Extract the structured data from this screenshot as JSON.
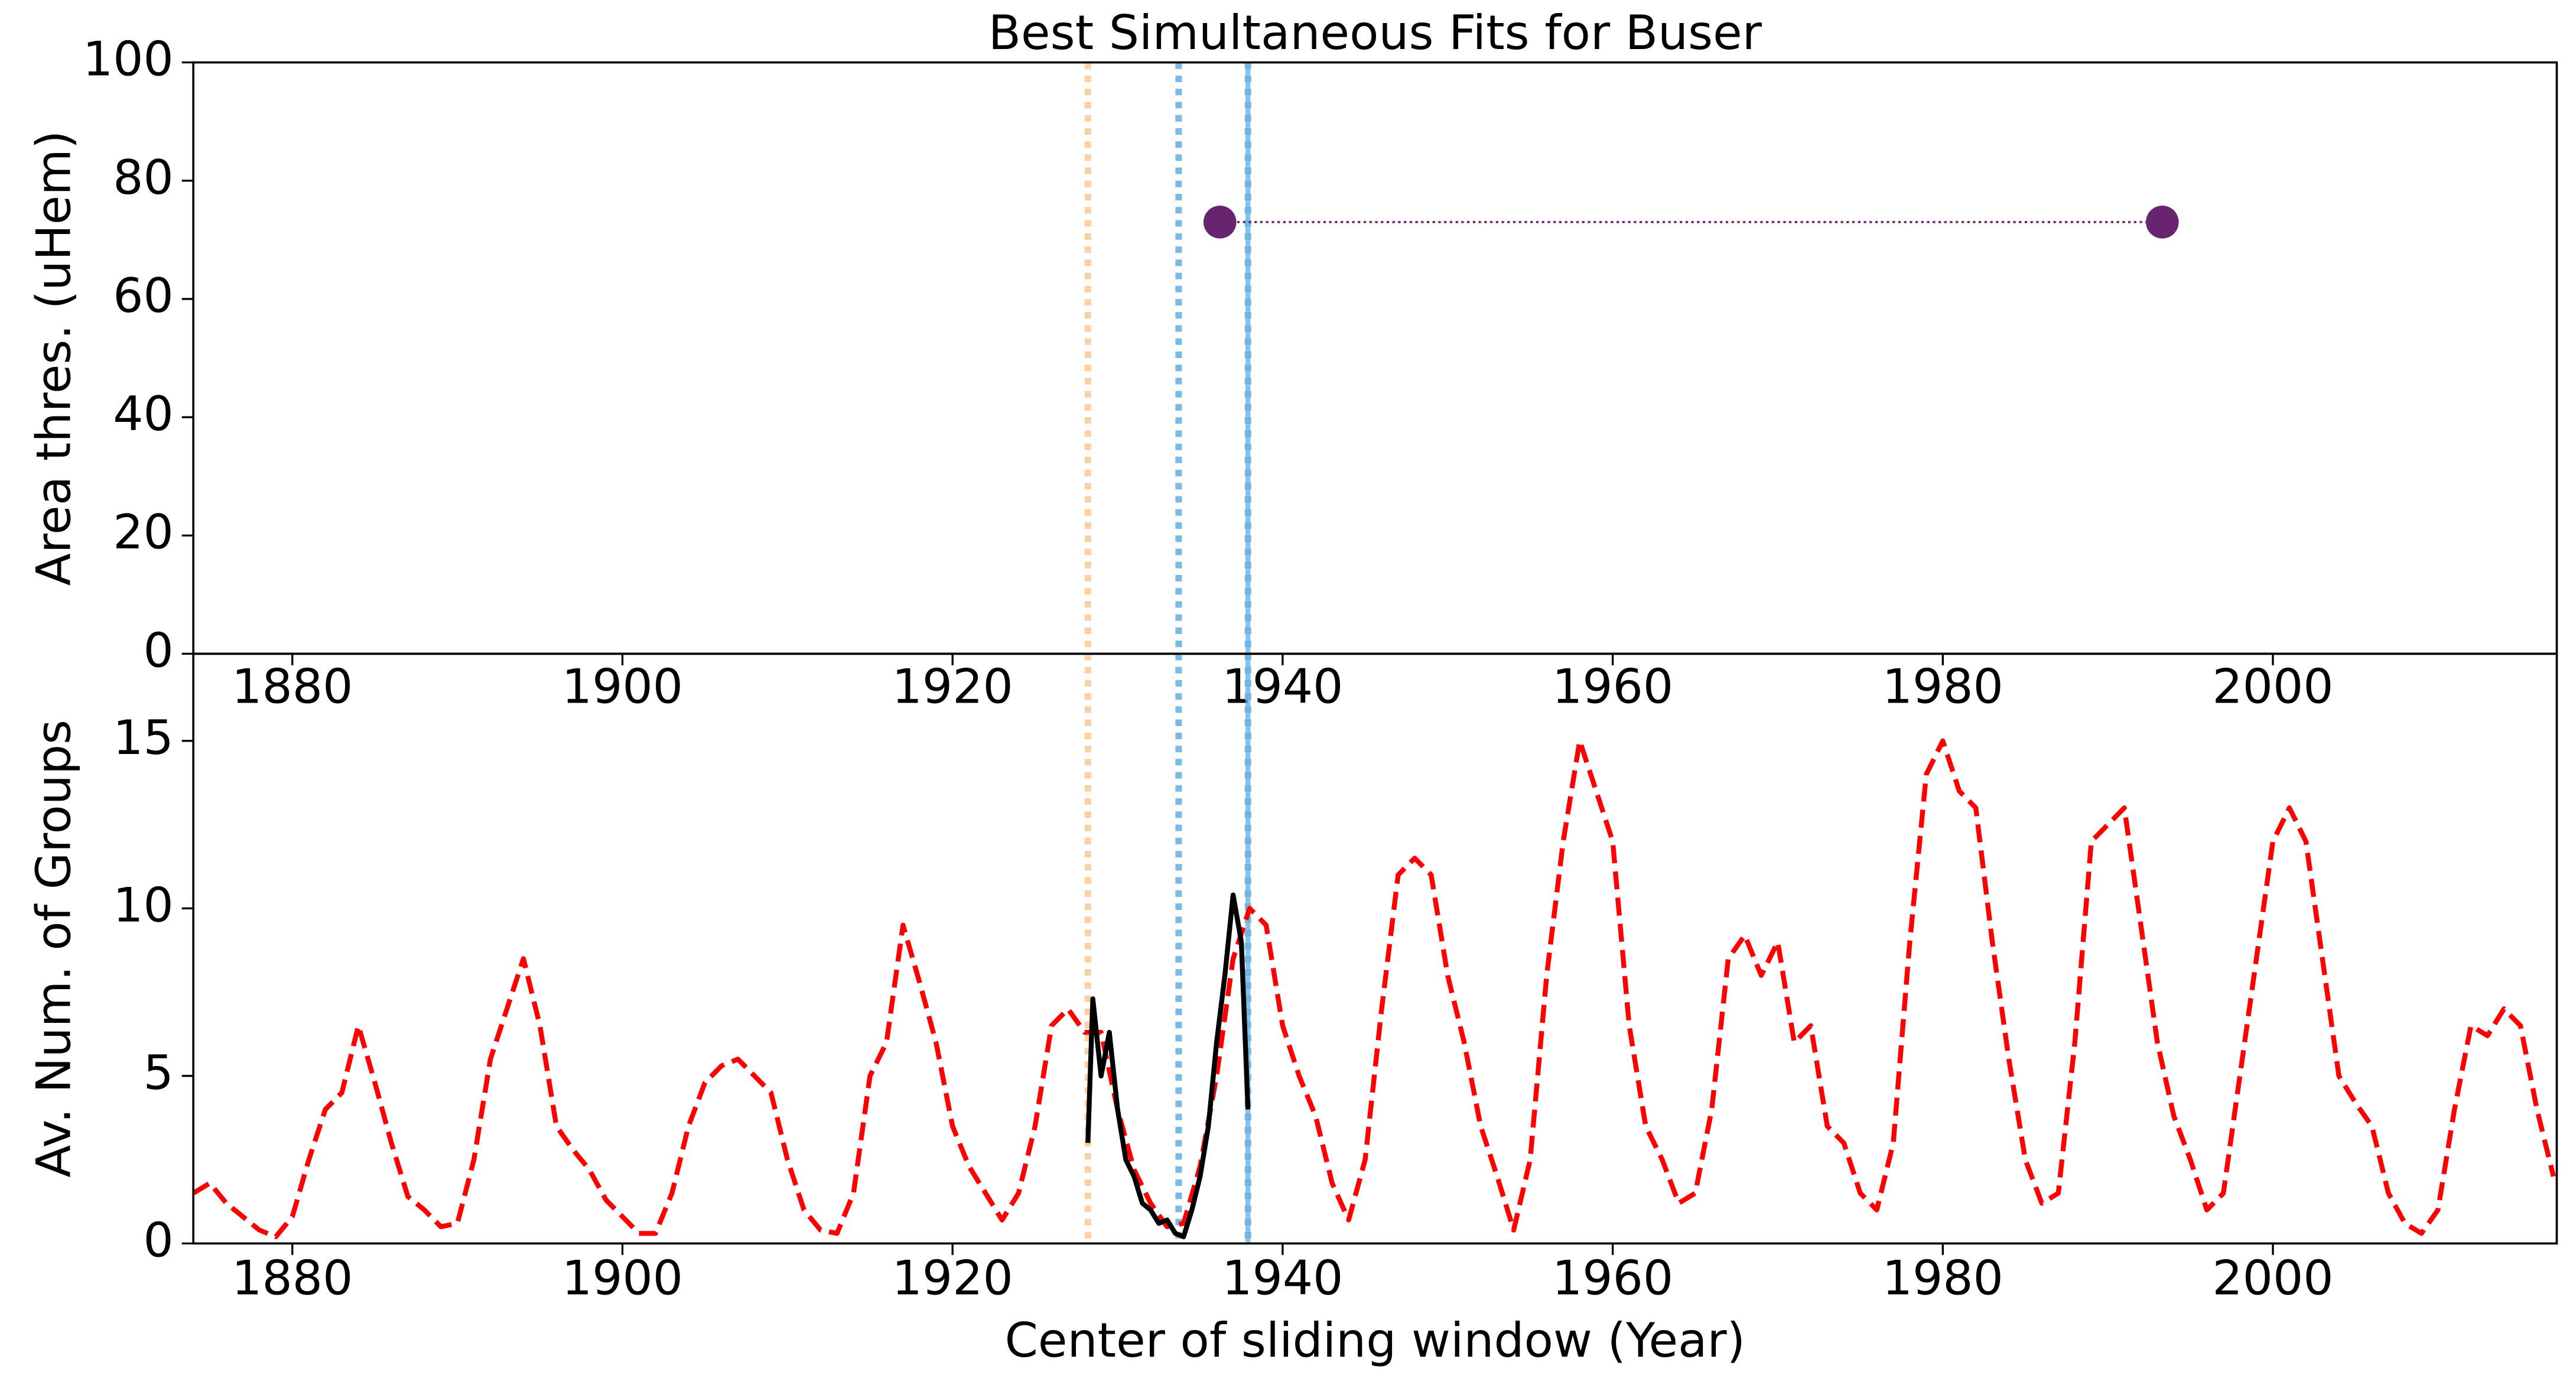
{
  "chart_data": [
    {
      "type": "scatter",
      "title": "Best Simultaneous Fits for Buser",
      "y_label": "Area thres. (uHem)",
      "xlim": [
        1874.0,
        2017.2
      ],
      "ylim": [
        0,
        100
      ],
      "xticks": [
        1880,
        1900,
        1920,
        1940,
        1960,
        1980,
        2000
      ],
      "yticks": [
        0,
        20,
        40,
        60,
        80,
        100
      ],
      "series": [
        {
          "color": "#68246f",
          "connect": "dotted",
          "x": [
            1936.2,
            1993.3
          ],
          "values": [
            73,
            73
          ]
        }
      ],
      "vlines": [
        {
          "x": 1928.2,
          "color": "#ffcc99",
          "style": "dotted"
        },
        {
          "x": 1933.7,
          "color": "#6cb4e4",
          "style": "dotted"
        },
        {
          "x": 1937.9,
          "color": "#6cb4e4",
          "style": "solid"
        }
      ]
    },
    {
      "type": "line",
      "x_label": "Center of sliding window (Year)",
      "y_label": "Av. Num. of Groups",
      "xlim": [
        1874.0,
        2017.2
      ],
      "ylim": [
        0,
        17.6
      ],
      "xticks": [
        1880,
        1900,
        1920,
        1940,
        1960,
        1980,
        2000
      ],
      "yticks": [
        0,
        5,
        10,
        15
      ],
      "series": [
        {
          "color": "#ff0000",
          "linestyle": "dashed",
          "x": [
            1874,
            1875,
            1876,
            1877,
            1878,
            1879,
            1880,
            1881,
            1882,
            1883,
            1884,
            1885,
            1886,
            1887,
            1888,
            1889,
            1890,
            1891,
            1892,
            1893,
            1894,
            1895,
            1896,
            1897,
            1898,
            1899,
            1900,
            1901,
            1902,
            1903,
            1904,
            1905,
            1906,
            1907,
            1908,
            1909,
            1910,
            1911,
            1912,
            1913,
            1914,
            1915,
            1916,
            1917,
            1918,
            1919,
            1920,
            1921,
            1922,
            1923,
            1924,
            1925,
            1926,
            1927,
            1928,
            1929,
            1930,
            1931,
            1932,
            1933,
            1934,
            1935,
            1936,
            1937,
            1938,
            1939,
            1940,
            1941,
            1942,
            1943,
            1944,
            1945,
            1946,
            1947,
            1948,
            1949,
            1950,
            1951,
            1952,
            1953,
            1954,
            1955,
            1956,
            1957,
            1958,
            1959,
            1960,
            1961,
            1962,
            1963,
            1964,
            1965,
            1966,
            1967,
            1968,
            1969,
            1970,
            1971,
            1972,
            1973,
            1974,
            1975,
            1976,
            1977,
            1978,
            1979,
            1980,
            1981,
            1982,
            1983,
            1984,
            1985,
            1986,
            1987,
            1988,
            1989,
            1990,
            1991,
            1992,
            1993,
            1994,
            1995,
            1996,
            1997,
            1998,
            1999,
            2000,
            2001,
            2002,
            2003,
            2004,
            2005,
            2006,
            2007,
            2008,
            2009,
            2010,
            2011,
            2012,
            2013,
            2014,
            2015,
            2016,
            2017
          ],
          "values": [
            1.5,
            1.8,
            1.2,
            0.8,
            0.4,
            0.2,
            0.8,
            2.5,
            4.0,
            4.5,
            6.5,
            4.8,
            3.0,
            1.4,
            1.0,
            0.5,
            0.6,
            2.5,
            5.5,
            7.0,
            8.5,
            6.5,
            3.5,
            2.8,
            2.2,
            1.3,
            0.8,
            0.3,
            0.3,
            1.5,
            3.5,
            4.8,
            5.3,
            5.5,
            5.0,
            4.5,
            2.5,
            1.0,
            0.4,
            0.3,
            1.5,
            5.0,
            6.0,
            9.5,
            7.8,
            6.0,
            3.5,
            2.3,
            1.5,
            0.7,
            1.5,
            3.5,
            6.5,
            7.0,
            6.3,
            6.3,
            4.0,
            2.2,
            1.2,
            0.5,
            0.6,
            2.3,
            5.0,
            8.5,
            10.0,
            9.5,
            6.5,
            5.0,
            3.8,
            1.8,
            0.7,
            2.5,
            7.0,
            11.0,
            11.5,
            11.0,
            8.0,
            6.0,
            3.5,
            2.0,
            0.4,
            2.5,
            8.0,
            12.0,
            15.0,
            13.5,
            12.0,
            6.5,
            3.5,
            2.5,
            1.2,
            1.5,
            4.0,
            8.5,
            9.2,
            8.0,
            9.0,
            6.0,
            6.5,
            3.5,
            3.0,
            1.5,
            1.0,
            3.0,
            9.0,
            14.0,
            15.0,
            13.5,
            13.0,
            9.0,
            5.5,
            2.5,
            1.2,
            1.5,
            6.0,
            12.0,
            12.5,
            13.0,
            9.5,
            6.0,
            3.8,
            2.5,
            1.0,
            1.5,
            5.0,
            8.5,
            12.0,
            13.0,
            12.0,
            8.5,
            5.0,
            4.2,
            3.5,
            1.5,
            0.6,
            0.3,
            1.0,
            4.0,
            6.5,
            6.2,
            7.0,
            6.5,
            4.0,
            2.0
          ]
        },
        {
          "color": "#000000",
          "linestyle": "solid",
          "x": [
            1928.2,
            1928.5,
            1929,
            1929.5,
            1930,
            1930.5,
            1931,
            1931.5,
            1932,
            1932.5,
            1933,
            1933.5,
            1934,
            1934.5,
            1935,
            1935.5,
            1936,
            1936.5,
            1937,
            1937.5,
            1937.9
          ],
          "values": [
            3.0,
            7.3,
            5.0,
            6.3,
            4.0,
            2.5,
            2.0,
            1.2,
            1.0,
            0.6,
            0.7,
            0.3,
            0.2,
            1.0,
            2.0,
            3.5,
            6.0,
            8.0,
            10.4,
            9.0,
            4.0
          ]
        }
      ],
      "vlines": [
        {
          "x": 1928.2,
          "color": "#ffcc99",
          "style": "dotted"
        },
        {
          "x": 1933.7,
          "color": "#6cb4e4",
          "style": "dotted"
        },
        {
          "x": 1937.9,
          "color": "#6cb4e4",
          "style": "solid"
        }
      ]
    }
  ]
}
